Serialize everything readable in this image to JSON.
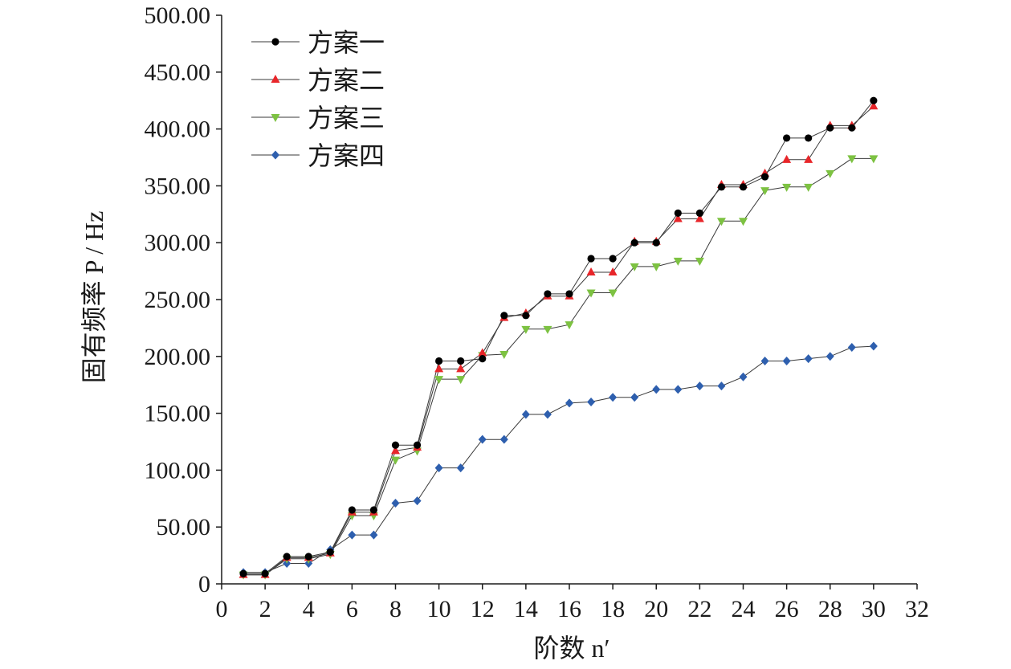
{
  "chart_data": {
    "type": "line",
    "xlabel": "阶数 n′",
    "ylabel": "固有频率 P / Hz",
    "xlim": [
      0,
      32
    ],
    "ylim": [
      0,
      500
    ],
    "x_ticks": [
      "0",
      "2",
      "4",
      "6",
      "8",
      "10",
      "12",
      "14",
      "16",
      "18",
      "20",
      "22",
      "24",
      "26",
      "28",
      "30",
      "32"
    ],
    "y_ticks": [
      "0",
      "50.00",
      "100.00",
      "150.00",
      "200.00",
      "250.00",
      "300.00",
      "350.00",
      "400.00",
      "450.00",
      "500.00"
    ],
    "grid": false,
    "legend_position": "top-left",
    "x": [
      1,
      2,
      3,
      4,
      5,
      6,
      7,
      8,
      9,
      10,
      11,
      12,
      13,
      14,
      15,
      16,
      17,
      18,
      19,
      20,
      21,
      22,
      23,
      24,
      25,
      26,
      27,
      28,
      29,
      30
    ],
    "series": [
      {
        "name": "方案一",
        "marker": "circle",
        "color": "#000000",
        "values": [
          9,
          9,
          24,
          24,
          28,
          65,
          65,
          122,
          122,
          196,
          196,
          198,
          236,
          236,
          255,
          255,
          286,
          286,
          300,
          300,
          326,
          326,
          349,
          349,
          358,
          392,
          392,
          401,
          401,
          425
        ]
      },
      {
        "name": "方案二",
        "marker": "triangle-up",
        "color": "#e8262a",
        "values": [
          8,
          8,
          23,
          23,
          27,
          63,
          63,
          117,
          120,
          189,
          189,
          203,
          234,
          238,
          253,
          253,
          274,
          274,
          301,
          301,
          321,
          321,
          351,
          351,
          361,
          373,
          373,
          403,
          403,
          420
        ]
      },
      {
        "name": "方案三",
        "marker": "triangle-down",
        "color": "#7dc242",
        "values": [
          8,
          8,
          22,
          22,
          26,
          60,
          60,
          109,
          117,
          180,
          180,
          201,
          202,
          224,
          224,
          228,
          256,
          256,
          279,
          279,
          284,
          284,
          319,
          319,
          346,
          349,
          349,
          361,
          374,
          374
        ]
      },
      {
        "name": "方案四",
        "marker": "diamond",
        "color": "#2e5fae",
        "values": [
          10,
          10,
          18,
          18,
          30,
          43,
          43,
          71,
          73,
          102,
          102,
          127,
          127,
          149,
          149,
          159,
          160,
          164,
          164,
          171,
          171,
          174,
          174,
          182,
          196,
          196,
          198,
          200,
          208,
          209
        ]
      }
    ]
  }
}
